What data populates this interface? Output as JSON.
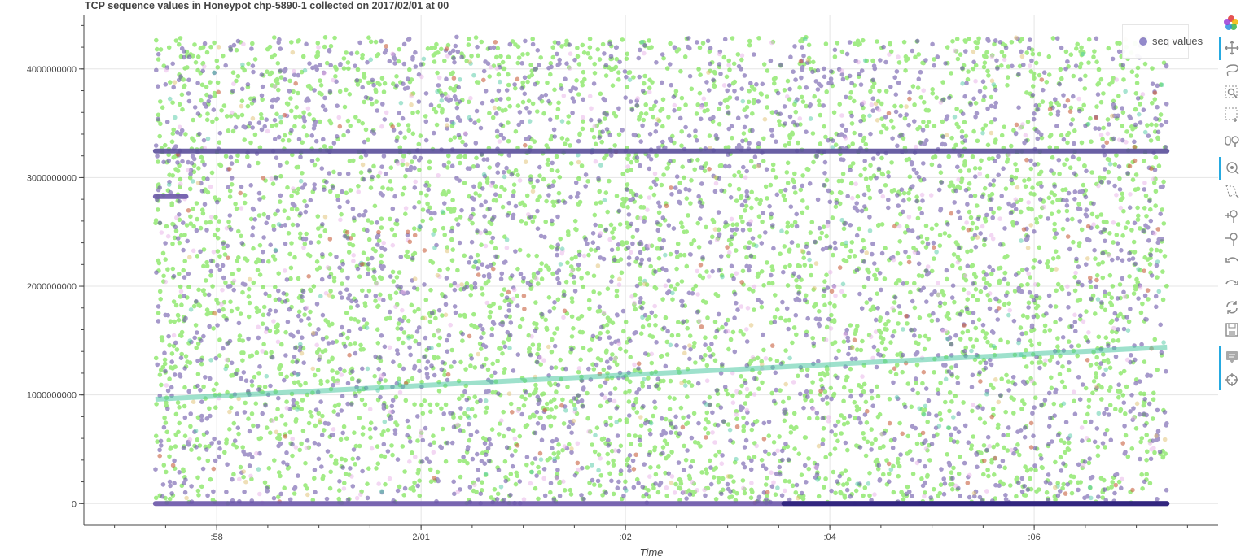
{
  "title": "TCP sequence values in Honeypot  chp-5890-1 collected on 2017/02/01 at 00",
  "legend": {
    "label": "seq values",
    "color": "#7a6fbf"
  },
  "toolbar": {
    "tools": [
      "pan-icon",
      "lasso-select-icon",
      "box-zoom-icon",
      "box-select-icon",
      "wheel-zoom-icon",
      "tap-icon",
      "poly-select-icon",
      "zoom-in-icon",
      "zoom-out-icon",
      "undo-icon",
      "redo-icon",
      "reset-icon",
      "save-icon",
      "hover-icon",
      "crosshair-icon"
    ]
  },
  "chart_data": {
    "type": "scatter",
    "title": "TCP sequence values in Honeypot  chp-5890-1 collected on 2017/02/01 at 00",
    "xlabel": "Time",
    "ylabel": "",
    "x_ticks": [
      ":58",
      "2/01",
      ":02",
      ":04",
      ":06"
    ],
    "y_ticks": [
      "0",
      "1000000000",
      "2000000000",
      "3000000000",
      "4000000000"
    ],
    "xlim_minutes": [
      -3.3,
      7.8
    ],
    "x_range_minutes": [
      -2.6,
      7.3
    ],
    "ylim": [
      -200000000,
      4500000000
    ],
    "grid": true,
    "legend_position": "top-right",
    "colors": [
      "#55dd22",
      "#6a55a8",
      "#e8b0e8",
      "#4fc9a3",
      "#c86040",
      "#e0c070",
      "#2a1f7a"
    ],
    "series": [
      {
        "name": "seq values",
        "description": "random seq values spanning 0 to ~4294967295"
      },
      {
        "band": "constant",
        "y": 3245000000,
        "color": "#5a4f9a"
      },
      {
        "band": "constant",
        "y": 0,
        "color": "#6a55a8"
      },
      {
        "band": "trend",
        "y_start": 960000000,
        "y_end": 1440000000,
        "color": "#4fc9a3"
      },
      {
        "band": "short",
        "y": 2825000000,
        "x_start_minutes": -2.6,
        "x_end_minutes": -2.3,
        "color": "#6a55a8"
      }
    ]
  }
}
